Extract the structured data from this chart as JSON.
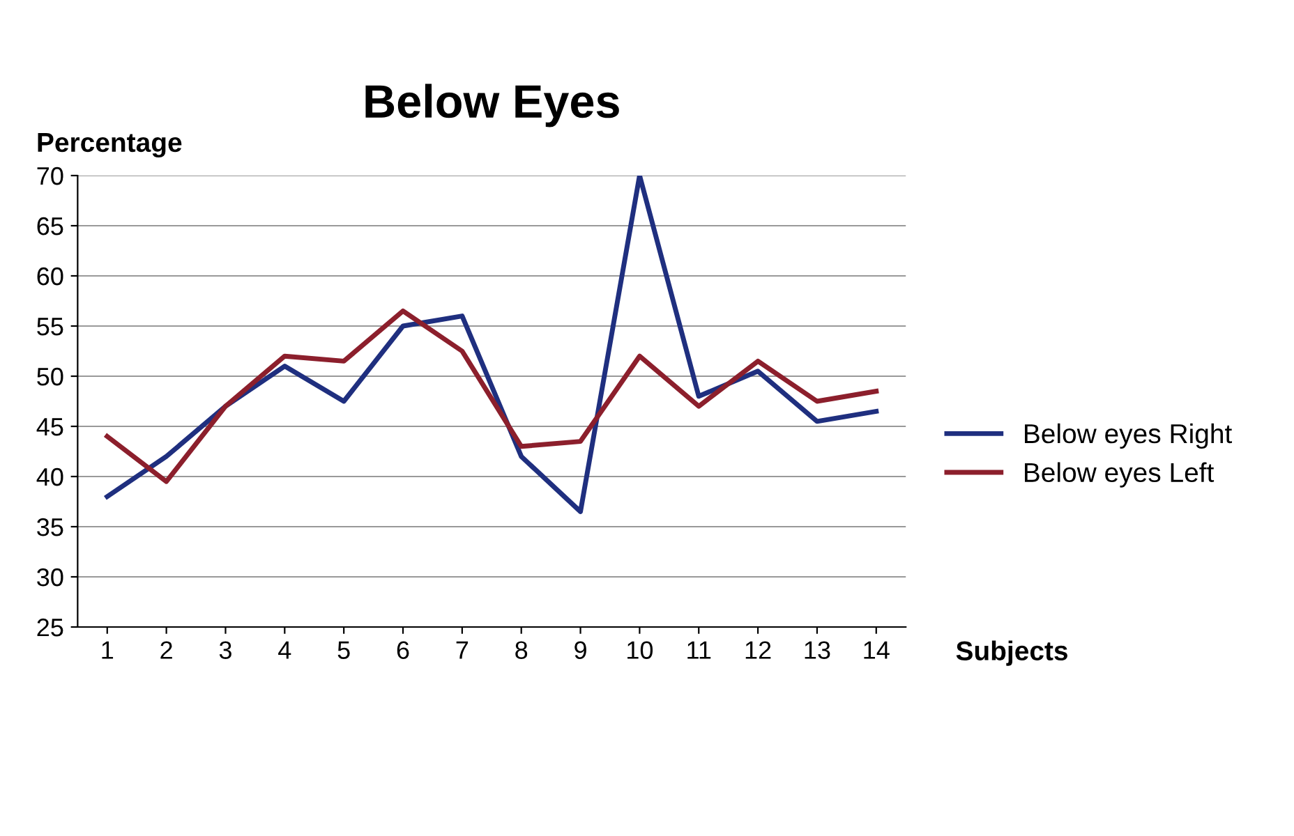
{
  "chart_data": {
    "type": "line",
    "title": "Below Eyes",
    "xlabel": "Subjects",
    "ylabel": "Percentage",
    "categories": [
      "1",
      "2",
      "3",
      "4",
      "5",
      "6",
      "7",
      "8",
      "9",
      "10",
      "11",
      "12",
      "13",
      "14"
    ],
    "series": [
      {
        "name": "Below eyes Right",
        "color": "#1f2f7f",
        "values": [
          38,
          42,
          47,
          51,
          47.5,
          55,
          56,
          42,
          36.5,
          70,
          48,
          50.5,
          45.5,
          46.5
        ]
      },
      {
        "name": "Below eyes Left",
        "color": "#8c1f2c",
        "values": [
          44,
          39.5,
          47,
          52,
          51.5,
          56.5,
          52.5,
          43,
          43.5,
          52,
          47,
          51.5,
          47.5,
          48.5
        ]
      }
    ],
    "ylim": [
      25,
      70
    ],
    "yticks": [
      25,
      30,
      35,
      40,
      45,
      50,
      55,
      60,
      65,
      70
    ],
    "grid": "y",
    "legend": "right",
    "marker": "none",
    "line_style": "solid"
  }
}
